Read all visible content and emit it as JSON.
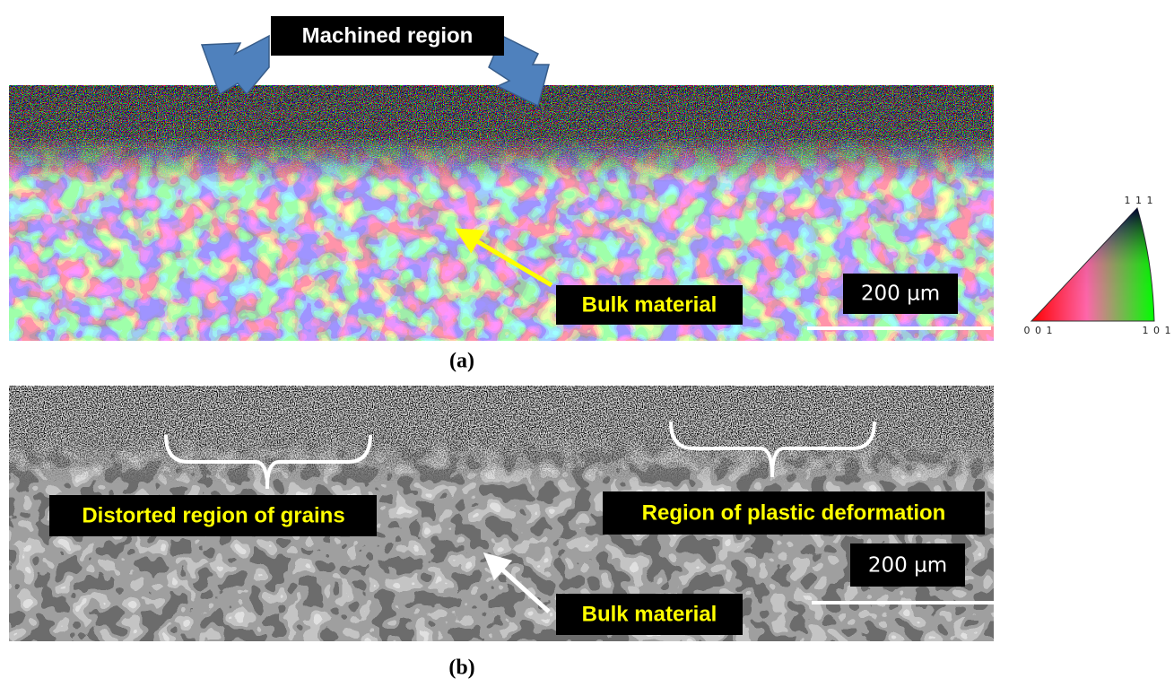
{
  "panel_a": {
    "label": "(a)",
    "machined_region": "Machined region",
    "bulk_material": "Bulk material",
    "scale_bar": "200 µm"
  },
  "panel_b": {
    "label": "(b)",
    "distorted_region": "Distorted region of grains",
    "plastic_region": "Region of plastic deformation",
    "bulk_material": "Bulk material",
    "scale_bar": "200 µm"
  },
  "legend": {
    "top": "1 1 1",
    "bottom_left": "0 0 1",
    "bottom_right": "1 0 1"
  }
}
